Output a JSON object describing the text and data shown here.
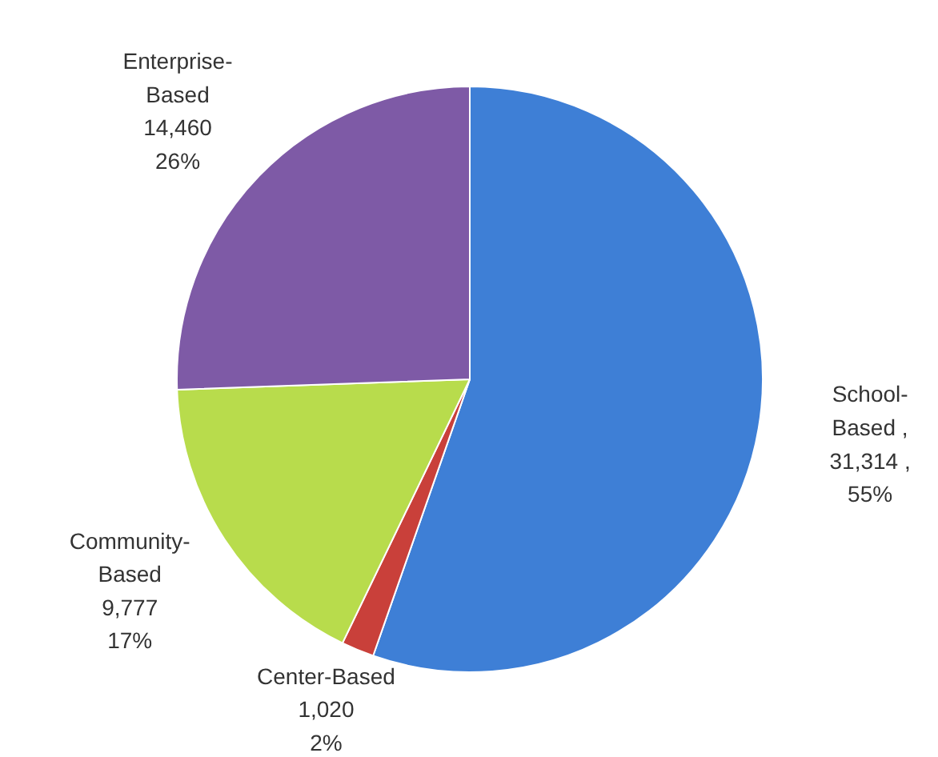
{
  "chart_data": {
    "type": "pie",
    "categories": [
      "School-Based",
      "Center-Based",
      "Community-Based",
      "Enterprise-Based"
    ],
    "values": [
      31314,
      1020,
      9777,
      14460
    ],
    "colors": [
      "#3e7fd6",
      "#c9403a",
      "#b8dc4c",
      "#7e5aa6"
    ],
    "value_labels": [
      ",\n31,314 ,\n55%",
      "1,020\n2%",
      "9,777\n17%",
      "14,460\n26%"
    ]
  }
}
